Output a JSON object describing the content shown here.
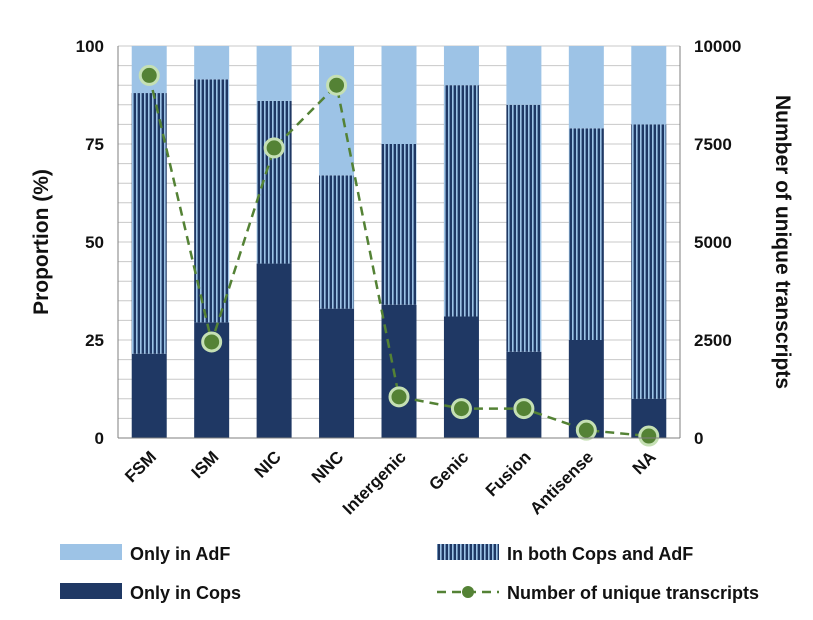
{
  "chart_data": {
    "type": "bar",
    "stacked": true,
    "categories": [
      "FSM",
      "ISM",
      "NIC",
      "NNC",
      "Intergenic",
      "Genic",
      "Fusion",
      "Antisense",
      "NA"
    ],
    "series": [
      {
        "name": "Only in Cops",
        "values": [
          21.5,
          29.5,
          44.5,
          33,
          34,
          31,
          22,
          25,
          10
        ],
        "color": "#1f3864",
        "pattern": "solid"
      },
      {
        "name": "In both Cops and AdF",
        "values": [
          66.5,
          62,
          41.5,
          34,
          41,
          59,
          63,
          54,
          70
        ],
        "color": "#1f3864",
        "stripe_color": "#9dc3e6",
        "pattern": "vertical-stripes"
      },
      {
        "name": "Only in AdF",
        "values": [
          12,
          8.5,
          14,
          33,
          25,
          10,
          15,
          21,
          20
        ],
        "color": "#9dc3e6",
        "pattern": "solid"
      }
    ],
    "line_series": {
      "name": "Number of unique transcripts",
      "axis": "right",
      "values": [
        9250,
        2450,
        7400,
        9000,
        1050,
        750,
        750,
        200,
        50
      ],
      "line_color": "#548235",
      "marker_fill": "#548235",
      "marker_stroke": "#c5e0b4",
      "dashed": true
    },
    "ylabel": "Proportion (%)",
    "y2label": "Number of unique transcripts",
    "ylim": [
      0,
      100
    ],
    "y2lim": [
      0,
      10000
    ],
    "yticks": [
      "0",
      "25",
      "50",
      "75",
      "100"
    ],
    "y2ticks": [
      "0",
      "2500",
      "5000",
      "7500",
      "10000"
    ],
    "grid": true,
    "legend": {
      "position": "bottom",
      "entries": [
        {
          "label": "Only in AdF",
          "series": "Only in AdF"
        },
        {
          "label": "In both Cops and AdF",
          "series": "In both Cops and AdF"
        },
        {
          "label": "Only in Cops",
          "series": "Only in Cops"
        },
        {
          "label": "Number of unique transcripts",
          "series": "Number of unique transcripts"
        }
      ]
    }
  }
}
